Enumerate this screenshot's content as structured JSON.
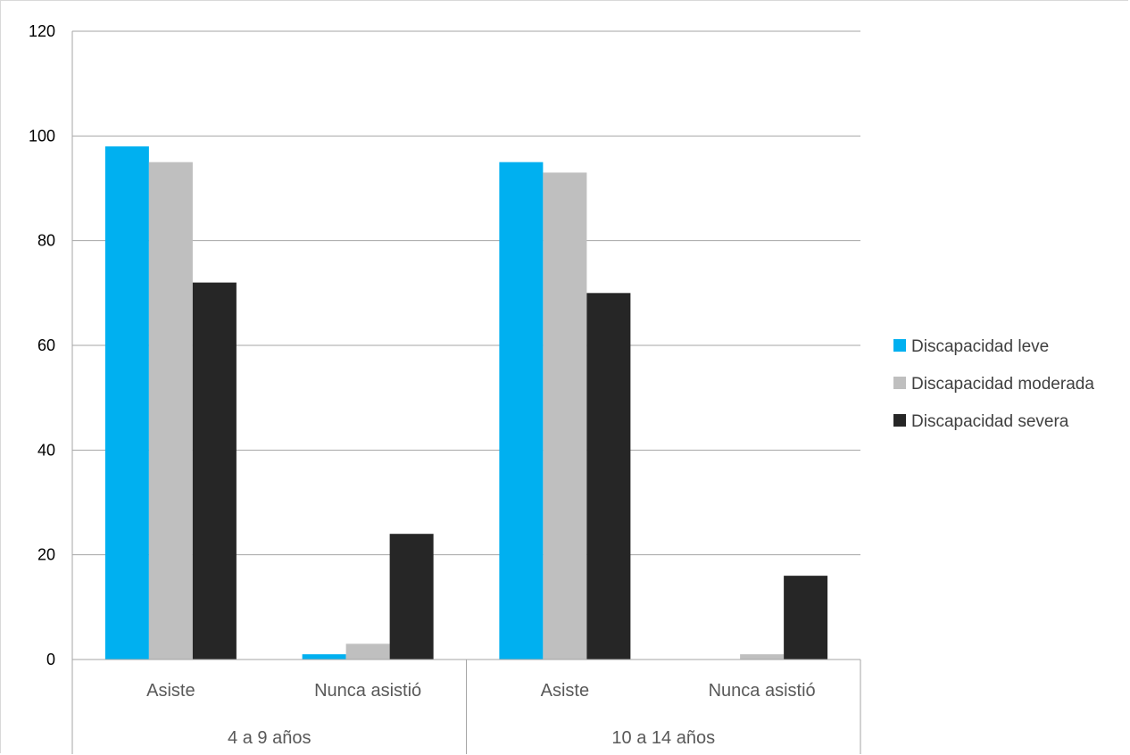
{
  "chart_data": {
    "type": "bar",
    "title": "",
    "xlabel": "",
    "ylabel": "",
    "ylim": [
      0,
      120
    ],
    "yticks": [
      0,
      20,
      40,
      60,
      80,
      100,
      120
    ],
    "grid": true,
    "legend_position": "right",
    "groups": [
      {
        "label": "4 a 9 años",
        "categories": [
          "Asiste",
          "Nunca asistió"
        ]
      },
      {
        "label": "10 a 14 años",
        "categories": [
          "Asiste",
          "Nunca asistió"
        ]
      }
    ],
    "categories": [
      "Asiste",
      "Nunca asistió",
      "Asiste",
      "Nunca asistió"
    ],
    "series": [
      {
        "name": "Discapacidad leve",
        "color": "#00b0f0",
        "values": [
          98,
          1,
          95,
          0
        ]
      },
      {
        "name": "Discapacidad moderada",
        "color": "#bfbfbf",
        "values": [
          95,
          3,
          93,
          1
        ]
      },
      {
        "name": "Discapacidad severa",
        "color": "#262626",
        "values": [
          72,
          24,
          70,
          16
        ]
      }
    ]
  }
}
